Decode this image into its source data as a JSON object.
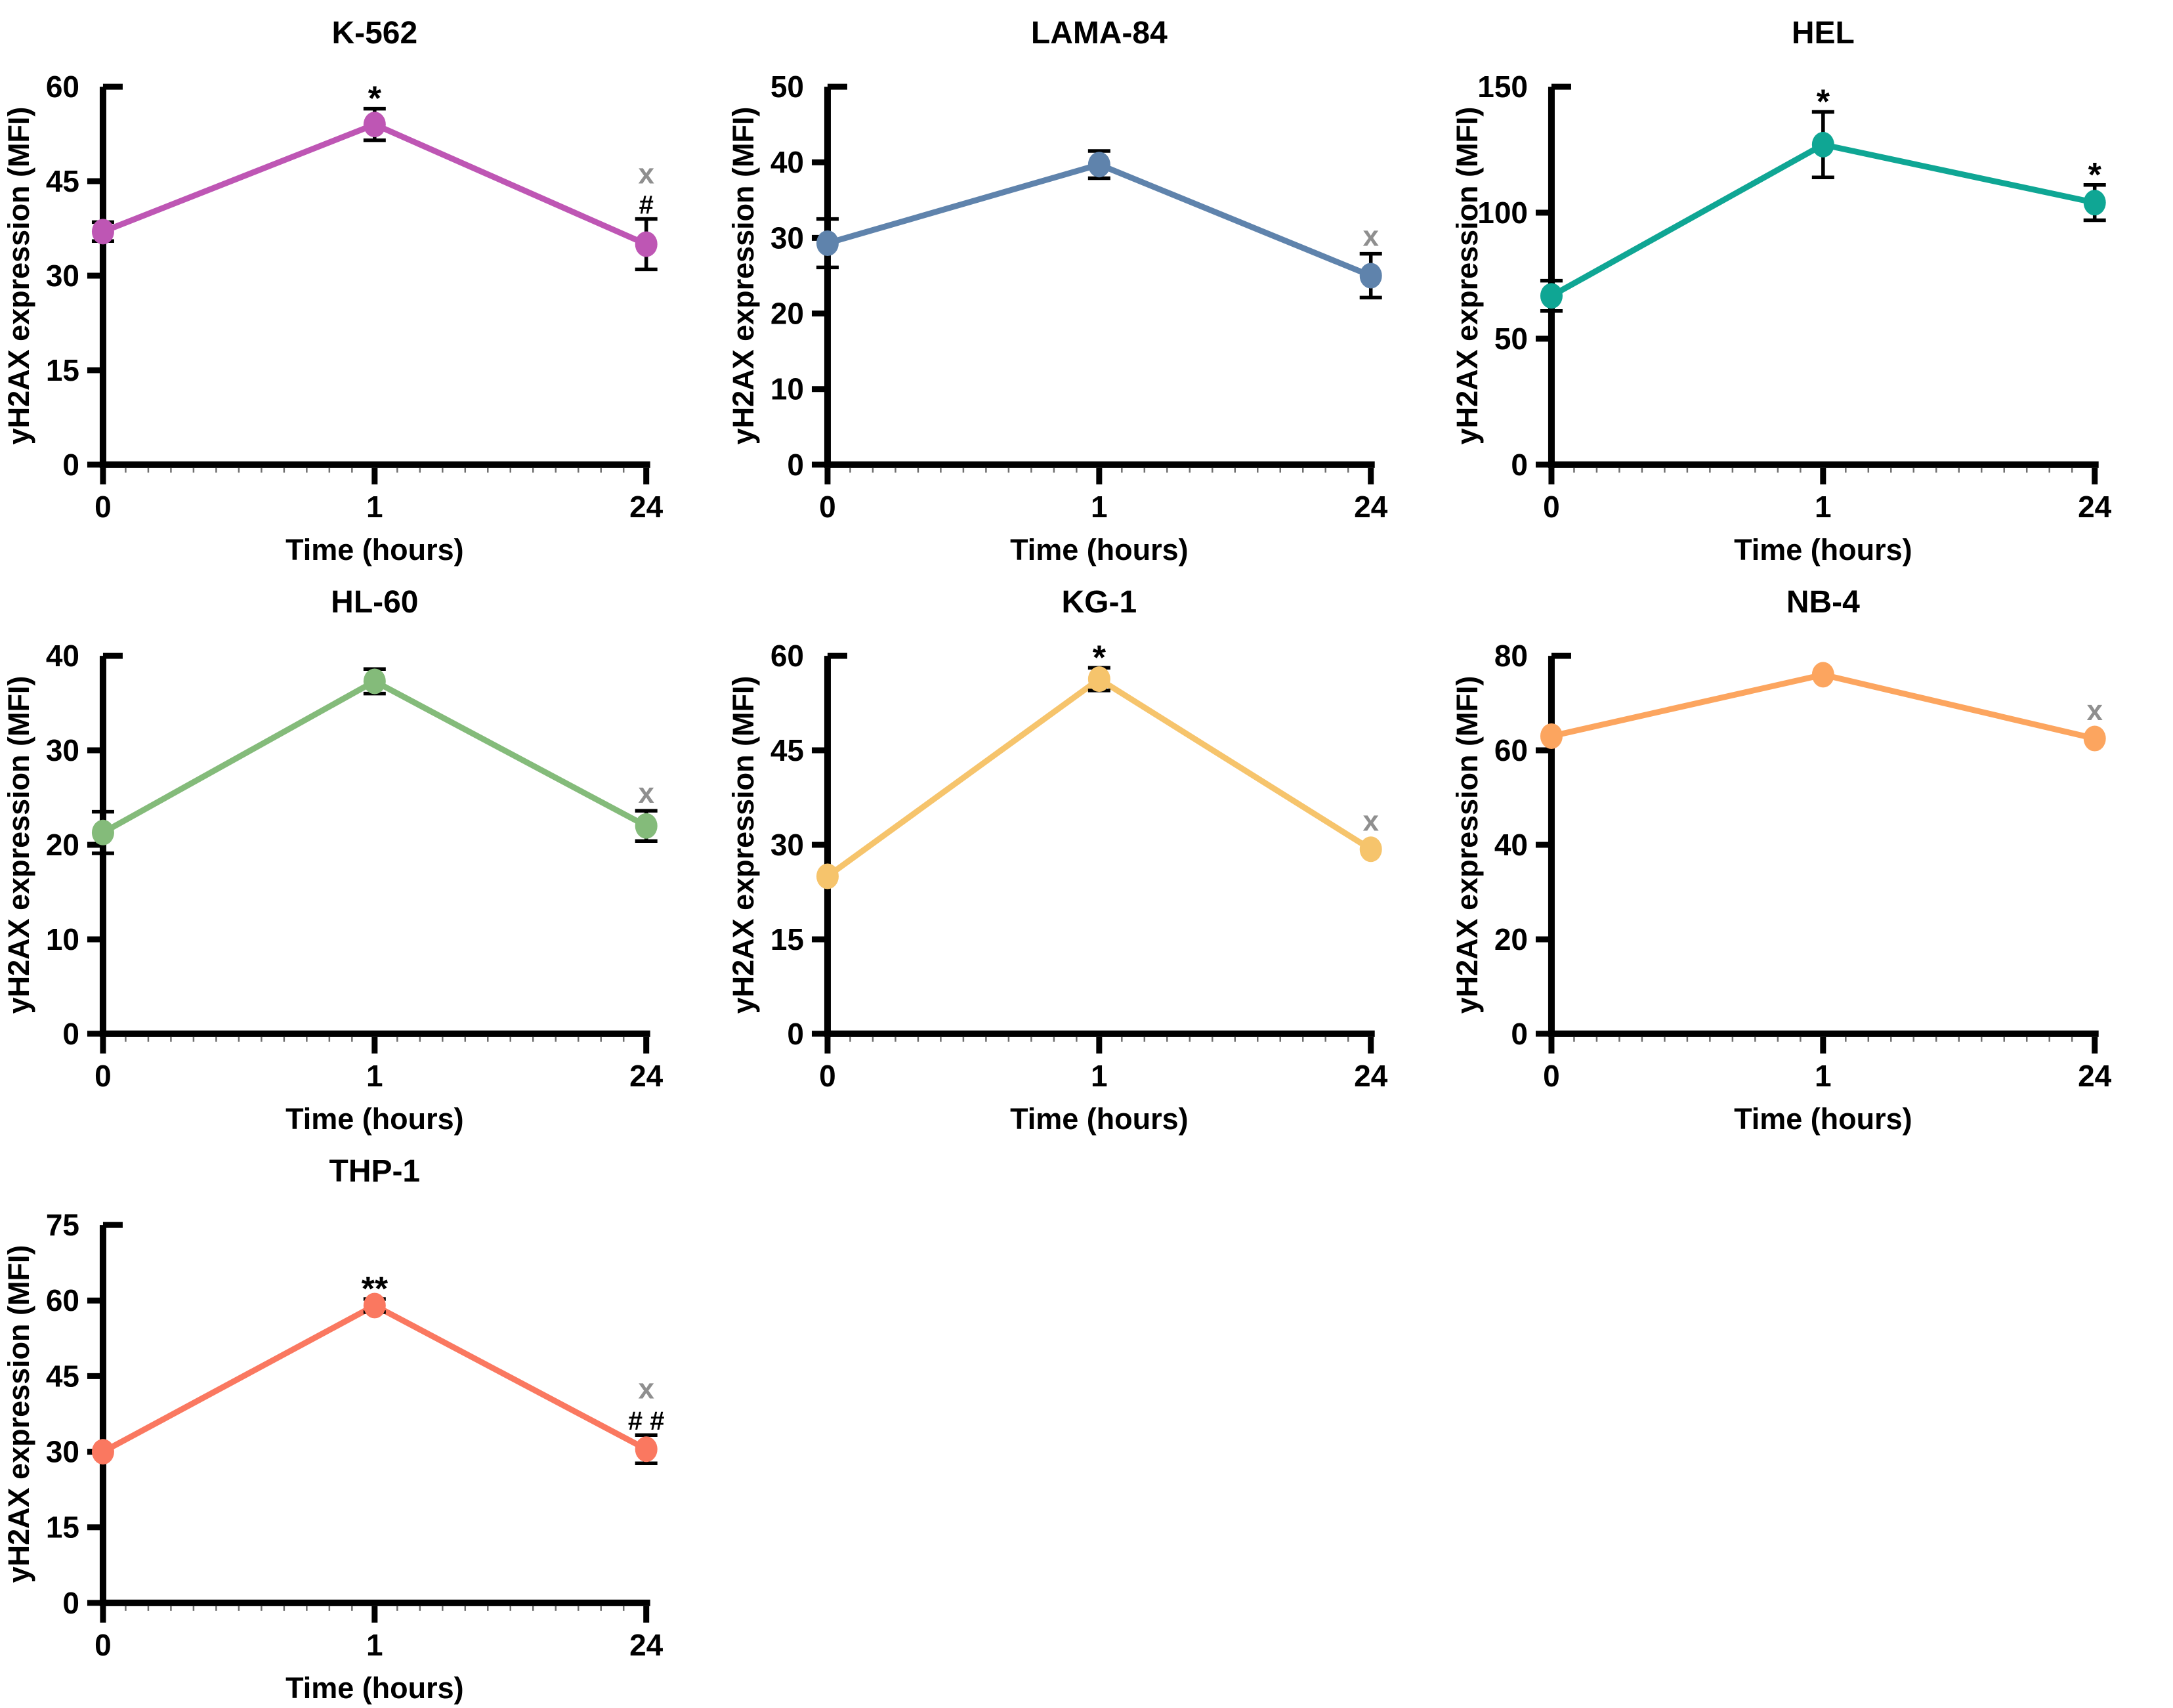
{
  "figure": {
    "background": "#ffffff",
    "x_label": "Time (hours)",
    "y_label": "yH2AX expression (MFI)",
    "x_categories": [
      "0",
      "1",
      "24"
    ],
    "annotation_colors": {
      "black": "#000000",
      "gray": "#8f8f8f"
    }
  },
  "chart_data": [
    {
      "type": "line",
      "title": "K-562",
      "color": "#be56b4",
      "xlabel": "Time (hours)",
      "ylabel": "yH2AX expression (MFI)",
      "x": [
        "0",
        "1",
        "24"
      ],
      "values": [
        37,
        54,
        35
      ],
      "errors": [
        1.5,
        2.5,
        4
      ],
      "ylim": [
        0,
        60
      ],
      "yticks": [
        0,
        15,
        30,
        45,
        60
      ],
      "annotations": [
        {
          "point": 1,
          "symbols": [
            {
              "text": "*",
              "color": "#000000",
              "size": 52,
              "dy": 2
            }
          ]
        },
        {
          "point": 2,
          "symbols": [
            {
              "text": "#",
              "color": "#000000",
              "size": 40,
              "dy": -8
            },
            {
              "text": "x",
              "color": "#8f8f8f",
              "size": 44,
              "dy": -54
            }
          ]
        }
      ]
    },
    {
      "type": "line",
      "title": "LAMA-84",
      "color": "#5f83ac",
      "xlabel": "Time (hours)",
      "ylabel": "yH2AX expression (MFI)",
      "x": [
        "0",
        "1",
        "24"
      ],
      "values": [
        29.3,
        39.7,
        25
      ],
      "errors": [
        3.2,
        1.8,
        2.9
      ],
      "ylim": [
        0,
        50
      ],
      "yticks": [
        0,
        10,
        20,
        30,
        40,
        50
      ],
      "annotations": [
        {
          "point": 2,
          "symbols": [
            {
              "text": "x",
              "color": "#8f8f8f",
              "size": 44,
              "dy": -12
            }
          ]
        }
      ]
    },
    {
      "type": "line",
      "title": "HEL",
      "color": "#0fa694",
      "xlabel": "Time (hours)",
      "ylabel": "yH2AX expression (MFI)",
      "x": [
        "0",
        "1",
        "24"
      ],
      "values": [
        67,
        127,
        104
      ],
      "errors": [
        6,
        13,
        7
      ],
      "ylim": [
        0,
        150
      ],
      "yticks": [
        0,
        50,
        100,
        150
      ],
      "annotations": [
        {
          "point": 1,
          "symbols": [
            {
              "text": "*",
              "color": "#000000",
              "size": 52,
              "dy": 2
            }
          ]
        },
        {
          "point": 2,
          "symbols": [
            {
              "text": "*",
              "color": "#000000",
              "size": 52,
              "dy": 2
            }
          ]
        }
      ]
    },
    {
      "type": "line",
      "title": "HL-60",
      "color": "#84bb7a",
      "xlabel": "Time (hours)",
      "ylabel": "yH2AX expression (MFI)",
      "x": [
        "0",
        "1",
        "24"
      ],
      "values": [
        21.3,
        37.3,
        22
      ],
      "errors": [
        2.2,
        1.3,
        1.6
      ],
      "ylim": [
        0,
        40
      ],
      "yticks": [
        0,
        10,
        20,
        30,
        40
      ],
      "annotations": [
        {
          "point": 2,
          "symbols": [
            {
              "text": "x",
              "color": "#8f8f8f",
              "size": 44,
              "dy": -12
            }
          ]
        }
      ]
    },
    {
      "type": "line",
      "title": "KG-1",
      "color": "#f6c46c",
      "xlabel": "Time (hours)",
      "ylabel": "yH2AX expression (MFI)",
      "x": [
        "0",
        "1",
        "24"
      ],
      "values": [
        25,
        56.3,
        29.3
      ],
      "errors": [
        0,
        1.8,
        0
      ],
      "ylim": [
        0,
        60
      ],
      "yticks": [
        0,
        15,
        30,
        45,
        60
      ],
      "annotations": [
        {
          "point": 1,
          "symbols": [
            {
              "text": "*",
              "color": "#000000",
              "size": 52,
              "dy": 2
            }
          ]
        },
        {
          "point": 2,
          "symbols": [
            {
              "text": "x",
              "color": "#8f8f8f",
              "size": 44,
              "dy": -2
            }
          ]
        }
      ]
    },
    {
      "type": "line",
      "title": "NB-4",
      "color": "#fca55f",
      "xlabel": "Time (hours)",
      "ylabel": "yH2AX expression (MFI)",
      "x": [
        "0",
        "1",
        "24"
      ],
      "values": [
        63,
        76,
        62.5
      ],
      "errors": [
        0,
        0,
        0
      ],
      "ylim": [
        0,
        80
      ],
      "yticks": [
        0,
        20,
        40,
        60,
        80
      ],
      "annotations": [
        {
          "point": 2,
          "symbols": [
            {
              "text": "x",
              "color": "#8f8f8f",
              "size": 44,
              "dy": -2
            }
          ]
        }
      ]
    },
    {
      "type": "line",
      "title": "THP-1",
      "color": "#fa7860",
      "xlabel": "Time (hours)",
      "ylabel": "yH2AX expression (MFI)",
      "x": [
        "0",
        "1",
        "24"
      ],
      "values": [
        30,
        59,
        30.5
      ],
      "errors": [
        0,
        1.3,
        2.8
      ],
      "ylim": [
        0,
        75
      ],
      "yticks": [
        0,
        15,
        30,
        45,
        60,
        75
      ],
      "annotations": [
        {
          "point": 1,
          "symbols": [
            {
              "text": "**",
              "color": "#000000",
              "size": 52,
              "dy": 2
            }
          ]
        },
        {
          "point": 2,
          "symbols": [
            {
              "text": "# #",
              "color": "#000000",
              "size": 40,
              "dy": -8
            },
            {
              "text": "x",
              "color": "#8f8f8f",
              "size": 44,
              "dy": -56
            }
          ]
        }
      ]
    }
  ]
}
